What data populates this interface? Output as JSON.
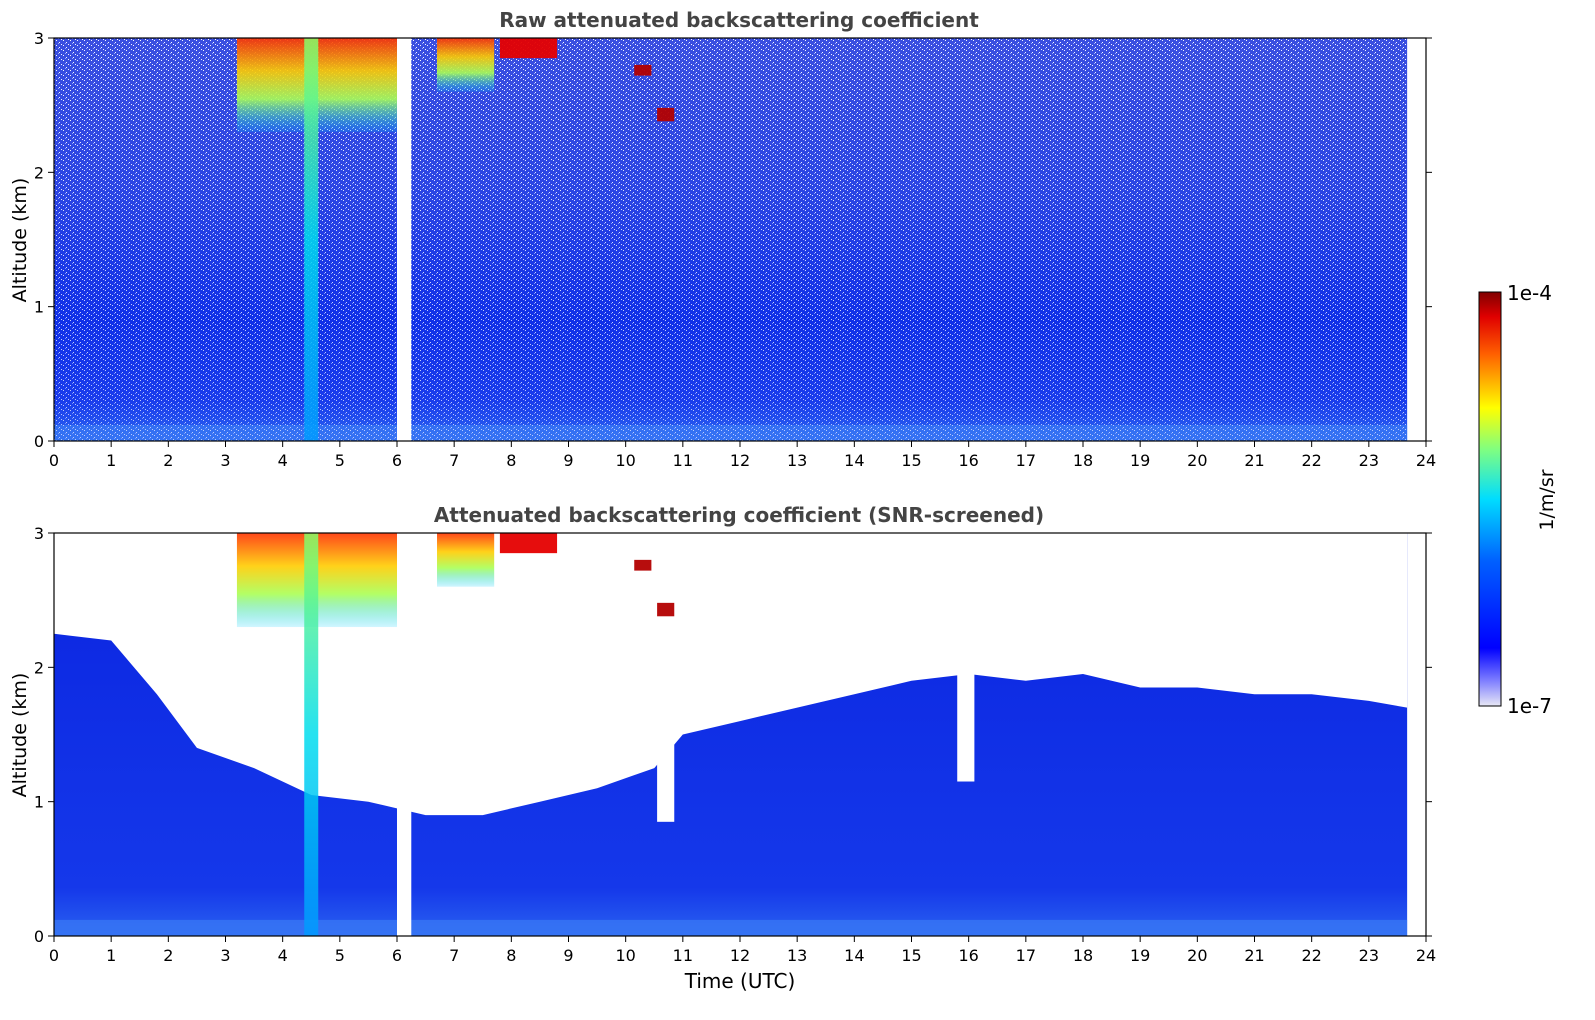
{
  "chart_data": [
    {
      "type": "heatmap",
      "title": "Raw attenuated backscattering coefficient",
      "xlabel": "",
      "ylabel": "Altitude (km)",
      "xlim": [
        0,
        24
      ],
      "ylim": [
        0,
        3
      ],
      "x_ticks": [
        "0",
        "1",
        "2",
        "3",
        "4",
        "5",
        "6",
        "7",
        "8",
        "9",
        "10",
        "11",
        "12",
        "13",
        "14",
        "15",
        "16",
        "17",
        "18",
        "19",
        "20",
        "21",
        "22",
        "23",
        "24"
      ],
      "y_ticks": [
        "0",
        "1",
        "2",
        "3"
      ],
      "data_end_hour": 23.67,
      "data_gap_hours": [
        6.0,
        6.25
      ],
      "features": [
        {
          "kind": "cloud",
          "x_range": [
            3.2,
            6.0
          ],
          "y_range": [
            2.3,
            3.0
          ],
          "level": 0.8
        },
        {
          "kind": "precip_column",
          "x": 4.5,
          "y_range": [
            0,
            3.0
          ],
          "level": 0.45
        },
        {
          "kind": "cloud",
          "x_range": [
            6.7,
            7.7
          ],
          "y_range": [
            2.6,
            3.0
          ],
          "level": 0.65
        },
        {
          "kind": "cloud",
          "x_range": [
            7.8,
            8.8
          ],
          "y_range": [
            2.85,
            3.0
          ],
          "level": 0.9
        },
        {
          "kind": "cloud",
          "x_range": [
            10.15,
            10.45
          ],
          "y_range": [
            2.72,
            2.8
          ],
          "level": 0.95
        },
        {
          "kind": "cloud",
          "x_range": [
            10.55,
            10.85
          ],
          "y_range": [
            2.38,
            2.48
          ],
          "level": 0.95
        }
      ]
    },
    {
      "type": "heatmap",
      "title": "Attenuated backscattering coefficient (SNR-screened)",
      "xlabel": "Time (UTC)",
      "ylabel": "Altitude (km)",
      "xlim": [
        0,
        24
      ],
      "ylim": [
        0,
        3
      ],
      "x_ticks": [
        "0",
        "1",
        "2",
        "3",
        "4",
        "5",
        "6",
        "7",
        "8",
        "9",
        "10",
        "11",
        "12",
        "13",
        "14",
        "15",
        "16",
        "17",
        "18",
        "19",
        "20",
        "21",
        "22",
        "23",
        "24"
      ],
      "y_ticks": [
        "0",
        "1",
        "2",
        "3"
      ],
      "screened_boundary_km": [
        [
          0,
          2.25
        ],
        [
          1,
          2.2
        ],
        [
          1.8,
          1.8
        ],
        [
          2.5,
          1.4
        ],
        [
          3.5,
          1.25
        ],
        [
          4.5,
          1.05
        ],
        [
          5.5,
          1.0
        ],
        [
          6.5,
          0.9
        ],
        [
          7.5,
          0.9
        ],
        [
          8.5,
          1.0
        ],
        [
          9.5,
          1.1
        ],
        [
          10.5,
          1.25
        ],
        [
          11.0,
          1.5
        ],
        [
          12.0,
          1.6
        ],
        [
          13.0,
          1.7
        ],
        [
          14.0,
          1.8
        ],
        [
          15.0,
          1.9
        ],
        [
          16.0,
          1.95
        ],
        [
          17.0,
          1.9
        ],
        [
          18.0,
          1.95
        ],
        [
          19.0,
          1.85
        ],
        [
          20.0,
          1.85
        ],
        [
          21.0,
          1.8
        ],
        [
          22.0,
          1.8
        ],
        [
          23.0,
          1.75
        ],
        [
          23.67,
          1.7
        ]
      ],
      "screened_gaps": [
        {
          "x_range": [
            10.55,
            10.85
          ],
          "y_min": 0.85
        },
        {
          "x_range": [
            15.8,
            16.1
          ],
          "y_min": 1.15
        }
      ]
    }
  ],
  "colorbar": {
    "label": "1/m/sr",
    "max_label": "1e-4",
    "min_label": "1e-7",
    "colormap": "jet",
    "colors": [
      "#e8e8f5",
      "#0000ff",
      "#00aaff",
      "#00ffff",
      "#ffff00",
      "#ff7700",
      "#ff0000",
      "#800000"
    ]
  },
  "colors": {
    "background_low": "#1428e6",
    "near_surface": "#2a5bf0",
    "masked": "#ffffff",
    "axis": "#000000",
    "title": "#444444"
  }
}
